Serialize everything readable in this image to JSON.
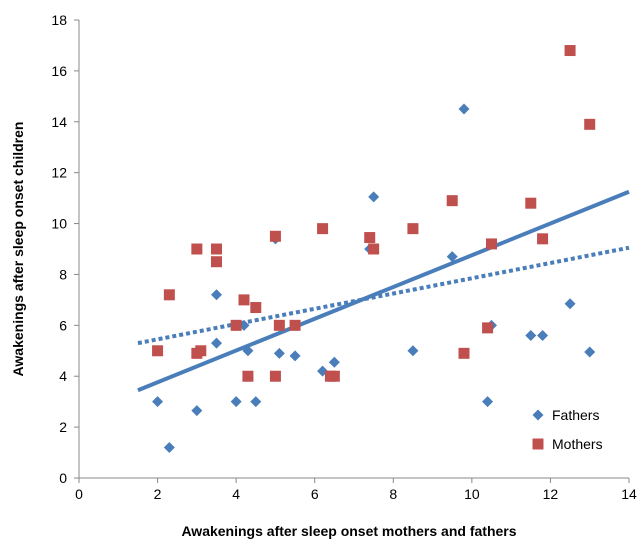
{
  "chart_data": {
    "type": "scatter",
    "xlabel": "Awakenings after sleep onset mothers and fathers",
    "ylabel": "Awakenings after sleep onset children",
    "xlim": [
      0,
      14
    ],
    "ylim": [
      0,
      18
    ],
    "xticks": [
      0,
      2,
      4,
      6,
      8,
      10,
      12,
      14
    ],
    "yticks": [
      0,
      2,
      4,
      6,
      8,
      10,
      12,
      14,
      16,
      18
    ],
    "grid": false,
    "legend_position": "bottom-right",
    "series": [
      {
        "name": "Fathers",
        "marker": "diamond",
        "color": "#4A7EBB",
        "points": [
          [
            2.0,
            3.0
          ],
          [
            2.3,
            1.2
          ],
          [
            3.0,
            2.65
          ],
          [
            3.5,
            5.3
          ],
          [
            3.5,
            7.2
          ],
          [
            4.0,
            3.0
          ],
          [
            4.0,
            6.0
          ],
          [
            4.2,
            6.0
          ],
          [
            4.3,
            5.0
          ],
          [
            4.5,
            3.0
          ],
          [
            5.0,
            9.4
          ],
          [
            5.1,
            4.9
          ],
          [
            5.5,
            4.8
          ],
          [
            6.2,
            4.2
          ],
          [
            6.5,
            4.55
          ],
          [
            7.4,
            9.0
          ],
          [
            7.5,
            11.05
          ],
          [
            8.5,
            5.0
          ],
          [
            9.5,
            8.7
          ],
          [
            9.8,
            14.5
          ],
          [
            10.4,
            3.0
          ],
          [
            10.5,
            6.0
          ],
          [
            11.5,
            5.6
          ],
          [
            11.8,
            5.6
          ],
          [
            12.5,
            6.85
          ],
          [
            13.0,
            4.95
          ]
        ],
        "trendline": {
          "style": "solid",
          "x": [
            1.5,
            14.0
          ],
          "y": [
            3.45,
            11.25
          ]
        }
      },
      {
        "name": "Mothers",
        "marker": "square",
        "color": "#C0504D",
        "points": [
          [
            2.0,
            5.0
          ],
          [
            2.3,
            7.2
          ],
          [
            3.0,
            9.0
          ],
          [
            3.0,
            4.9
          ],
          [
            3.1,
            5.0
          ],
          [
            3.5,
            9.0
          ],
          [
            3.5,
            8.5
          ],
          [
            4.0,
            6.0
          ],
          [
            4.2,
            7.0
          ],
          [
            4.3,
            4.0
          ],
          [
            4.5,
            6.7
          ],
          [
            5.0,
            9.5
          ],
          [
            5.0,
            4.0
          ],
          [
            5.1,
            6.0
          ],
          [
            5.5,
            6.0
          ],
          [
            6.2,
            9.8
          ],
          [
            6.4,
            4.0
          ],
          [
            6.5,
            4.0
          ],
          [
            7.4,
            9.45
          ],
          [
            7.5,
            9.0
          ],
          [
            8.5,
            9.8
          ],
          [
            9.5,
            10.9
          ],
          [
            9.8,
            4.9
          ],
          [
            10.4,
            5.9
          ],
          [
            10.5,
            9.2
          ],
          [
            11.5,
            10.8
          ],
          [
            11.8,
            9.4
          ],
          [
            12.5,
            16.8
          ],
          [
            13.0,
            13.9
          ]
        ],
        "trendline": {
          "style": "dotted",
          "x": [
            1.5,
            14.0
          ],
          "y": [
            5.3,
            9.05
          ]
        }
      }
    ]
  }
}
